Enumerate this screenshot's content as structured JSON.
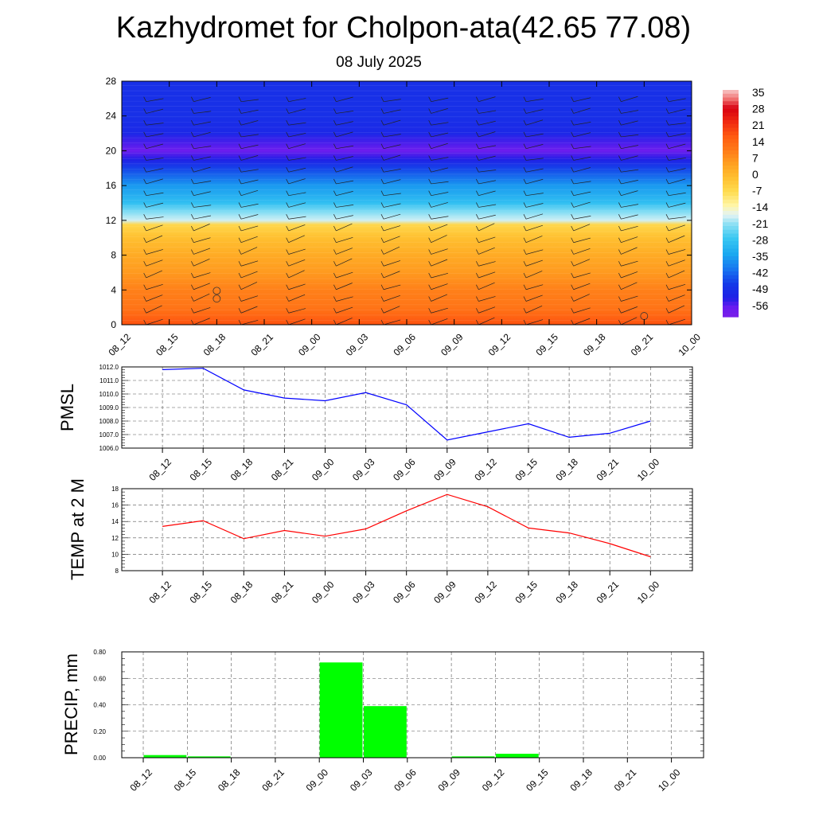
{
  "header": {
    "title": "Kazhydromet for Cholpon-ata(42.65 77.08)",
    "date": "08 July 2025"
  },
  "colors": {
    "pmsl_line": "#0000ff",
    "temp_line": "#ff0000",
    "precip_bar": "#00ff00",
    "axis": "#000000",
    "grid": "#000000"
  },
  "time_labels": [
    "08_12",
    "08_15",
    "08_18",
    "08_21",
    "09_00",
    "09_03",
    "09_06",
    "09_09",
    "09_12",
    "09_15",
    "09_18",
    "09_21",
    "10_00"
  ],
  "chart_data": [
    {
      "type": "heatmap",
      "title": "",
      "xlabel": "",
      "ylabel": "",
      "x": [
        "08_12",
        "08_15",
        "08_18",
        "08_21",
        "09_00",
        "09_03",
        "09_06",
        "09_09",
        "09_12",
        "09_15",
        "09_18",
        "09_21",
        "10_00"
      ],
      "yticks": [
        0,
        4,
        8,
        12,
        16,
        20,
        24,
        28
      ],
      "ylim": [
        0,
        28
      ],
      "colorbar": {
        "labels": [
          "35",
          "28",
          "21",
          "14",
          "7",
          "0",
          "-7",
          "-14",
          "-21",
          "-28",
          "-35",
          "-42",
          "-49",
          "-56"
        ],
        "range": [
          -60,
          38
        ]
      },
      "profile": {
        "levels": [
          0,
          1,
          2,
          4,
          6,
          8,
          10,
          11.5,
          12,
          13,
          14,
          16,
          18,
          19,
          20,
          21,
          22,
          24,
          26,
          28
        ],
        "values": [
          19,
          16,
          13,
          11,
          7,
          4,
          0,
          -5,
          -17,
          -21,
          -28,
          -35,
          -45,
          -52,
          -57,
          -54,
          -50,
          -48,
          -48,
          -48
        ]
      },
      "wind_barbs": true,
      "markers": [
        {
          "time": "08_18",
          "level": 3.9
        },
        {
          "time": "08_18",
          "level": 3.0
        },
        {
          "time": "09_21",
          "level": 1.0
        }
      ]
    },
    {
      "type": "line",
      "ylabel": "PMSL",
      "ylim": [
        1006.0,
        1012.0
      ],
      "yticks": [
        "1006.0",
        "1007.0",
        "1008.0",
        "1009.0",
        "1010.0",
        "1011.0",
        "1012.0"
      ],
      "grid": true,
      "x": [
        "08_12",
        "08_15",
        "08_18",
        "08_21",
        "09_00",
        "09_03",
        "09_06",
        "09_09",
        "09_12",
        "09_15",
        "09_18",
        "09_21",
        "10_00"
      ],
      "series": [
        {
          "values": [
            1011.8,
            1011.9,
            1010.3,
            1009.7,
            1009.5,
            1010.1,
            1009.2,
            1006.6,
            1007.2,
            1007.8,
            1006.8,
            1007.1,
            1008.0
          ]
        }
      ]
    },
    {
      "type": "line",
      "ylabel": "TEMP at 2 M",
      "ylim": [
        8,
        18
      ],
      "yticks": [
        "8",
        "10",
        "12",
        "14",
        "16",
        "18"
      ],
      "grid": true,
      "x": [
        "08_12",
        "08_15",
        "08_18",
        "08_21",
        "09_00",
        "09_03",
        "09_06",
        "09_09",
        "09_12",
        "09_15",
        "09_18",
        "09_21",
        "10_00"
      ],
      "series": [
        {
          "values": [
            13.4,
            14.1,
            11.9,
            12.9,
            12.2,
            13.1,
            15.3,
            17.3,
            15.8,
            13.2,
            12.6,
            11.3,
            9.7
          ]
        }
      ]
    },
    {
      "type": "bar",
      "ylabel": "PRECIP, mm",
      "ylim": [
        0,
        0.8
      ],
      "yticks": [
        "0.00",
        "0.20",
        "0.40",
        "0.60",
        "0.80"
      ],
      "grid": true,
      "categories": [
        "08_12",
        "08_15",
        "08_18",
        "08_21",
        "09_00",
        "09_03",
        "09_06",
        "09_09",
        "09_12",
        "09_15",
        "09_18",
        "09_21",
        "10_00"
      ],
      "values": [
        0,
        0.02,
        0.01,
        0,
        0,
        0.72,
        0.39,
        0,
        0.01,
        0.03,
        0,
        0,
        0
      ]
    }
  ]
}
